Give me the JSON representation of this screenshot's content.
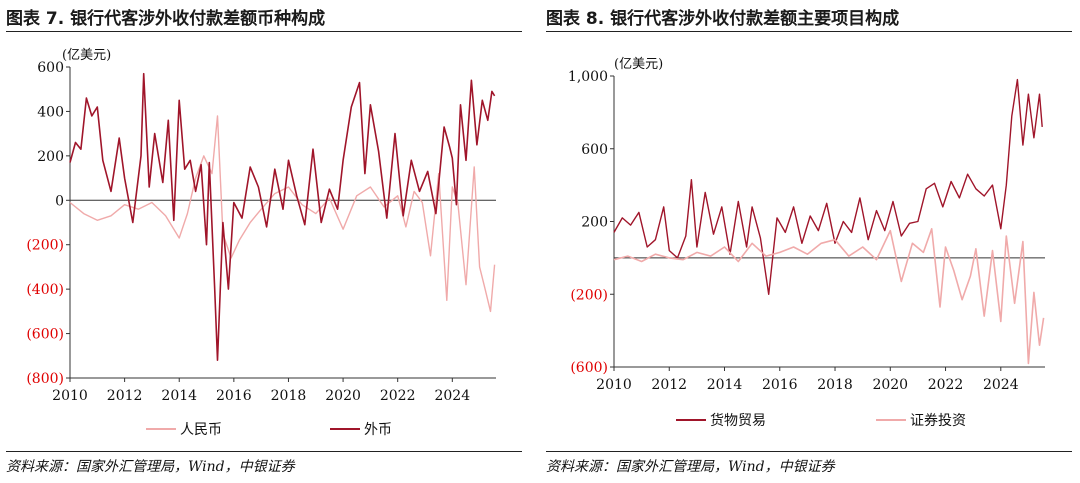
{
  "colors": {
    "foreign": "#a0152a",
    "rmb": "#f0aaaa",
    "neg_tick": "#e00000",
    "pos_tick": "#111111"
  },
  "chart_data": [
    {
      "type": "line",
      "title": "图表 7. 银行代客涉外收付款差额币种构成",
      "unit": "(亿美元)",
      "ylim": [
        -800,
        600
      ],
      "yticks": [
        600,
        400,
        200,
        0,
        -200,
        -400,
        -600,
        -800
      ],
      "ytick_labels": [
        "600",
        "400",
        "200",
        "0",
        "(200)",
        "(400)",
        "(600)",
        "(800)"
      ],
      "xlim": [
        2010,
        2025.6
      ],
      "xticks": [
        2010,
        2012,
        2014,
        2016,
        2018,
        2020,
        2022,
        2024
      ],
      "xtick_labels": [
        "2010",
        "2012",
        "2014",
        "2016",
        "2018",
        "2020",
        "2022",
        "2024"
      ],
      "series": [
        {
          "name": "人民币",
          "color": "rmb",
          "x": [
            2010.0,
            2010.5,
            2011.0,
            2011.5,
            2012.0,
            2012.5,
            2013.0,
            2013.5,
            2014.0,
            2014.3,
            2014.6,
            2014.9,
            2015.2,
            2015.4,
            2015.6,
            2015.9,
            2016.2,
            2016.6,
            2017.0,
            2017.5,
            2018.0,
            2018.5,
            2019.0,
            2019.5,
            2020.0,
            2020.5,
            2021.0,
            2021.5,
            2022.0,
            2022.3,
            2022.6,
            2022.9,
            2023.2,
            2023.5,
            2023.8,
            2024.0,
            2024.2,
            2024.5,
            2024.8,
            2025.0,
            2025.2,
            2025.4,
            2025.55
          ],
          "y": [
            -10,
            -60,
            -90,
            -70,
            -20,
            -40,
            -10,
            -70,
            -170,
            -60,
            100,
            200,
            120,
            380,
            -150,
            -260,
            -180,
            -100,
            -40,
            30,
            60,
            -20,
            -60,
            10,
            -130,
            20,
            60,
            -30,
            20,
            -120,
            40,
            -10,
            -250,
            120,
            -450,
            60,
            -10,
            -380,
            150,
            -300,
            -400,
            -500,
            -290
          ]
        },
        {
          "name": "外币",
          "color": "foreign",
          "x": [
            2010.0,
            2010.2,
            2010.4,
            2010.6,
            2010.8,
            2011.0,
            2011.2,
            2011.5,
            2011.8,
            2012.0,
            2012.3,
            2012.6,
            2012.7,
            2012.9,
            2013.1,
            2013.4,
            2013.6,
            2013.8,
            2014.0,
            2014.2,
            2014.4,
            2014.6,
            2014.8,
            2015.0,
            2015.1,
            2015.3,
            2015.4,
            2015.6,
            2015.8,
            2016.0,
            2016.3,
            2016.6,
            2016.9,
            2017.2,
            2017.5,
            2017.8,
            2018.0,
            2018.3,
            2018.6,
            2018.9,
            2019.2,
            2019.5,
            2019.8,
            2020.0,
            2020.3,
            2020.6,
            2020.8,
            2021.0,
            2021.3,
            2021.6,
            2021.9,
            2022.2,
            2022.5,
            2022.8,
            2023.1,
            2023.4,
            2023.7,
            2023.9,
            2024.0,
            2024.15,
            2024.3,
            2024.5,
            2024.7,
            2024.9,
            2025.1,
            2025.3,
            2025.45,
            2025.55
          ],
          "y": [
            170,
            260,
            230,
            460,
            380,
            420,
            180,
            40,
            280,
            100,
            -100,
            200,
            570,
            60,
            300,
            80,
            360,
            -90,
            450,
            140,
            180,
            40,
            160,
            -200,
            170,
            -400,
            -720,
            -100,
            -400,
            -10,
            -80,
            150,
            60,
            -120,
            140,
            -40,
            180,
            20,
            -110,
            230,
            -100,
            50,
            -40,
            180,
            420,
            530,
            120,
            430,
            220,
            -80,
            300,
            -70,
            180,
            40,
            130,
            -60,
            330,
            240,
            190,
            -20,
            430,
            180,
            540,
            250,
            450,
            360,
            490,
            470
          ]
        }
      ],
      "legend": [
        "人民币",
        "外币"
      ]
    },
    {
      "type": "line",
      "title": "图表 8. 银行代客涉外收付款差额主要项目构成",
      "unit": "(亿美元)",
      "ylim": [
        -600,
        1000
      ],
      "yticks": [
        1000,
        600,
        200,
        -200,
        -600
      ],
      "ytick_labels": [
        "1,000",
        "600",
        "200",
        "(200)",
        "(600)"
      ],
      "xlim": [
        2010,
        2025.6
      ],
      "xticks": [
        2010,
        2012,
        2014,
        2016,
        2018,
        2020,
        2022,
        2024
      ],
      "xtick_labels": [
        "2010",
        "2012",
        "2014",
        "2016",
        "2018",
        "2020",
        "2022",
        "2024"
      ],
      "series": [
        {
          "name": "货物贸易",
          "color": "foreign",
          "x": [
            2010.0,
            2010.3,
            2010.6,
            2010.9,
            2011.2,
            2011.5,
            2011.8,
            2012.0,
            2012.3,
            2012.6,
            2012.8,
            2013.0,
            2013.3,
            2013.6,
            2013.9,
            2014.2,
            2014.5,
            2014.8,
            2015.0,
            2015.3,
            2015.6,
            2015.9,
            2016.2,
            2016.5,
            2016.8,
            2017.1,
            2017.4,
            2017.7,
            2018.0,
            2018.3,
            2018.6,
            2018.9,
            2019.2,
            2019.5,
            2019.8,
            2020.1,
            2020.4,
            2020.7,
            2021.0,
            2021.3,
            2021.6,
            2021.9,
            2022.2,
            2022.5,
            2022.8,
            2023.1,
            2023.4,
            2023.7,
            2024.0,
            2024.2,
            2024.4,
            2024.6,
            2024.8,
            2025.0,
            2025.2,
            2025.4,
            2025.5
          ],
          "y": [
            140,
            220,
            180,
            250,
            60,
            100,
            280,
            40,
            0,
            120,
            430,
            60,
            360,
            130,
            280,
            20,
            310,
            60,
            280,
            110,
            -200,
            220,
            140,
            280,
            80,
            230,
            150,
            300,
            80,
            200,
            140,
            330,
            100,
            260,
            150,
            310,
            120,
            190,
            200,
            380,
            410,
            280,
            420,
            330,
            460,
            380,
            340,
            400,
            160,
            400,
            780,
            980,
            620,
            900,
            660,
            900,
            720
          ]
        },
        {
          "name": "证券投资",
          "color": "rmb",
          "x": [
            2010.0,
            2010.5,
            2011.0,
            2011.5,
            2012.0,
            2012.5,
            2013.0,
            2013.5,
            2014.0,
            2014.5,
            2015.0,
            2015.5,
            2016.0,
            2016.5,
            2017.0,
            2017.5,
            2018.0,
            2018.5,
            2019.0,
            2019.5,
            2020.0,
            2020.4,
            2020.8,
            2021.2,
            2021.5,
            2021.8,
            2022.0,
            2022.3,
            2022.6,
            2022.9,
            2023.1,
            2023.4,
            2023.7,
            2024.0,
            2024.2,
            2024.5,
            2024.8,
            2025.0,
            2025.2,
            2025.4,
            2025.55
          ],
          "y": [
            -10,
            10,
            -20,
            20,
            0,
            -10,
            30,
            10,
            60,
            -20,
            80,
            10,
            30,
            60,
            20,
            80,
            100,
            10,
            60,
            -10,
            150,
            -130,
            80,
            30,
            160,
            -270,
            60,
            -70,
            -230,
            -100,
            50,
            -320,
            40,
            -350,
            120,
            -250,
            90,
            -580,
            -190,
            -480,
            -330
          ]
        }
      ],
      "legend": [
        "货物贸易",
        "证券投资"
      ]
    }
  ],
  "source": "资料来源：国家外汇管理局，Wind，中银证券"
}
